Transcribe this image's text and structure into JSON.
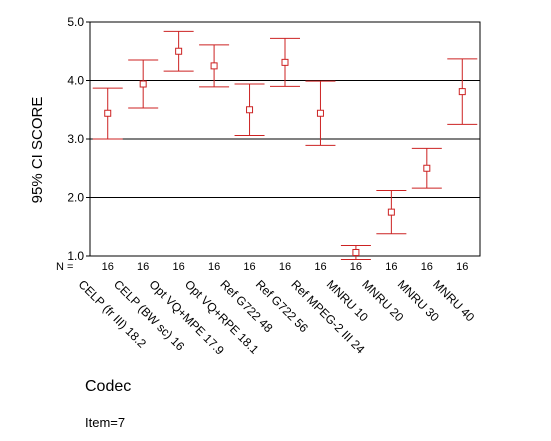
{
  "chart_data": {
    "type": "errorbar",
    "title": "",
    "xlabel": "Codec",
    "ylabel": "95% CI SCORE",
    "ylim": [
      1.0,
      5.0
    ],
    "yticks": [
      "1.0",
      "2.0",
      "3.0",
      "4.0",
      "5.0"
    ],
    "gridlines": [
      2.0,
      3.0,
      4.0
    ],
    "n_prefix": "N =",
    "footnote": "Item=7",
    "marker": "square",
    "color": "#cc2222",
    "categories": [
      "CELP (fr III) 18.2",
      "CELP (BW sc) 16",
      "Opt VQ+MPE 17.9",
      "Opt VQ+RPE 18.1",
      "Ref G722 48",
      "Ref G722 56",
      "Ref MPEG-2 III 24",
      "MNRU 10",
      "MNRU 20",
      "MNRU 30",
      "MNRU 40"
    ],
    "n": [
      "16",
      "16",
      "16",
      "16",
      "16",
      "16",
      "16",
      "16",
      "16",
      "16",
      "16"
    ],
    "means": [
      3.44,
      3.94,
      4.5,
      4.25,
      3.5,
      4.31,
      3.44,
      1.06,
      1.75,
      2.5,
      3.81
    ],
    "ci_low": [
      3.0,
      3.53,
      4.16,
      3.89,
      3.06,
      3.9,
      2.89,
      0.94,
      1.38,
      2.16,
      3.25
    ],
    "ci_high": [
      3.87,
      4.35,
      4.84,
      4.61,
      3.94,
      4.72,
      3.99,
      1.18,
      2.12,
      2.84,
      4.37
    ]
  }
}
